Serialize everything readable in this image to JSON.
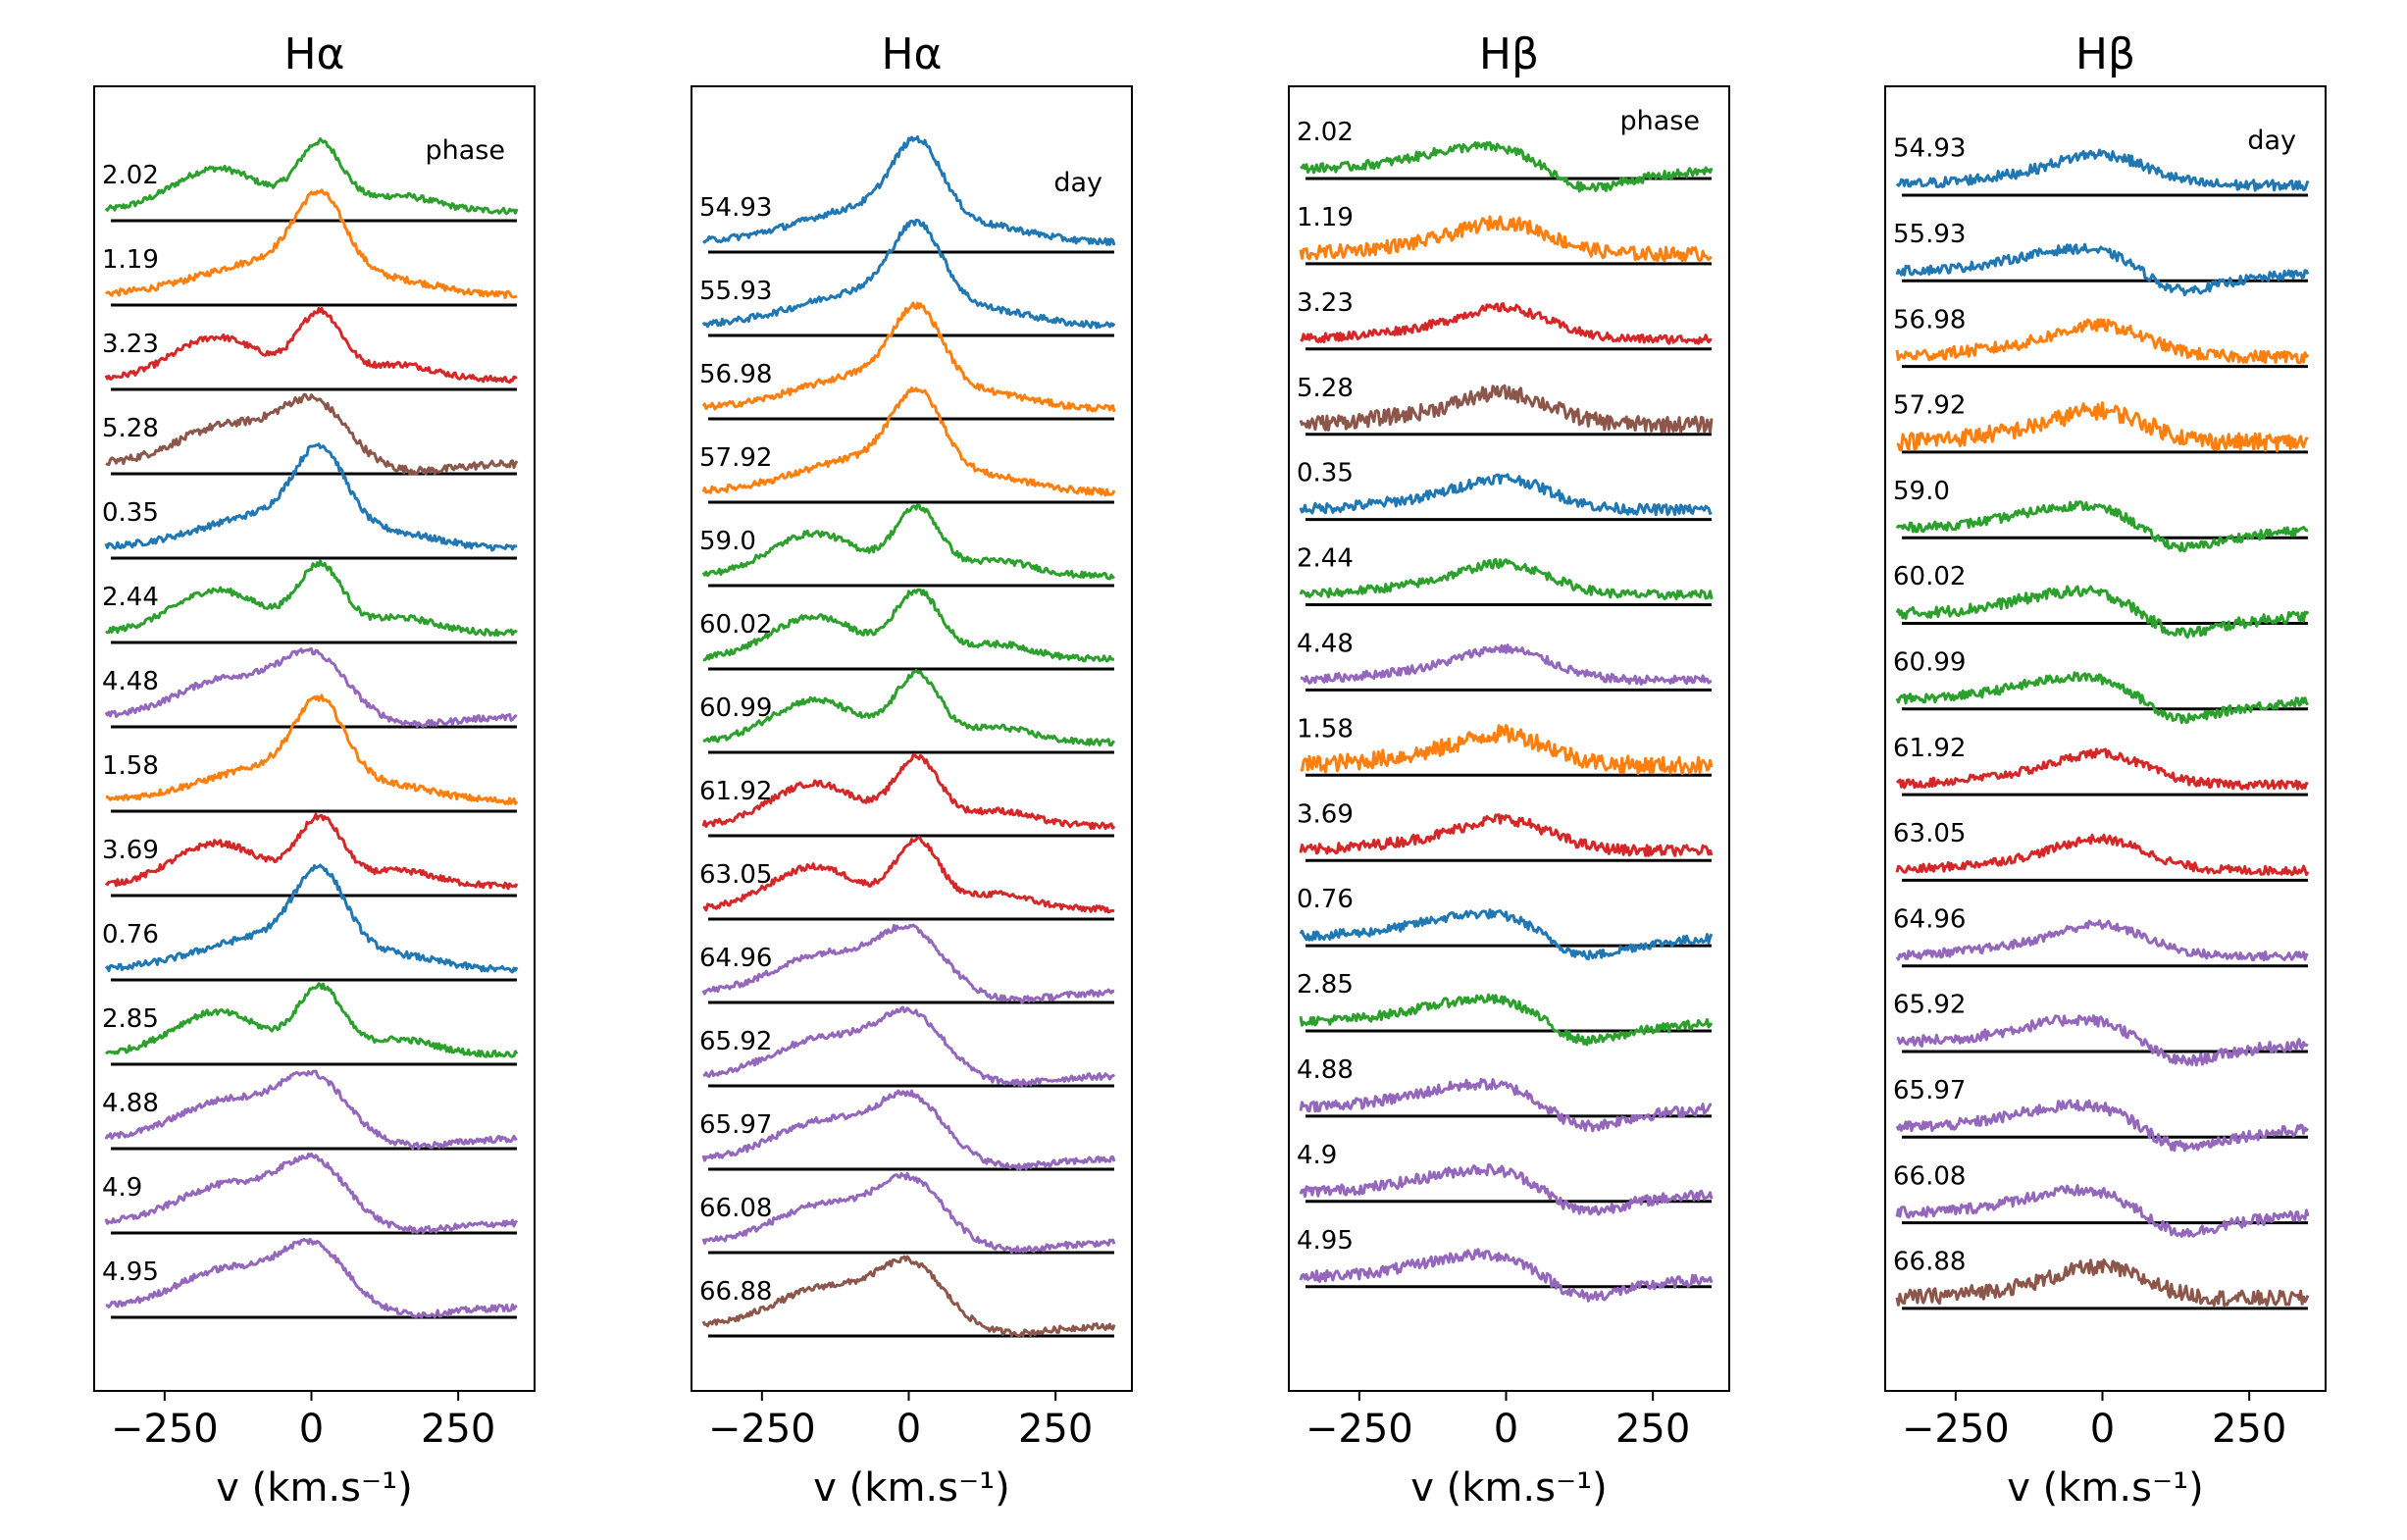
{
  "chart_data": [
    {
      "type": "line",
      "title": "Hα",
      "xlabel": "v (km.s⁻¹)",
      "xlim": [
        -370,
        380
      ],
      "xticks": [
        -250,
        0,
        250
      ],
      "corner_label": "phase",
      "spectra": [
        {
          "label": "2.02",
          "color": "#2ca02c",
          "shape": "double",
          "noise": 0.02
        },
        {
          "label": "1.19",
          "color": "#ff7f0e",
          "shape": "single",
          "noise": 0.02
        },
        {
          "label": "3.23",
          "color": "#d62728",
          "shape": "double",
          "noise": 0.02
        },
        {
          "label": "5.28",
          "color": "#8c564b",
          "shape": "broad",
          "noise": 0.025
        },
        {
          "label": "0.35",
          "color": "#1f77b4",
          "shape": "single",
          "noise": 0.02
        },
        {
          "label": "2.44",
          "color": "#2ca02c",
          "shape": "double",
          "noise": 0.02
        },
        {
          "label": "4.48",
          "color": "#9467bd",
          "shape": "broad",
          "noise": 0.02
        },
        {
          "label": "1.58",
          "color": "#ff7f0e",
          "shape": "single",
          "noise": 0.02
        },
        {
          "label": "3.69",
          "color": "#d62728",
          "shape": "double",
          "noise": 0.02
        },
        {
          "label": "0.76",
          "color": "#1f77b4",
          "shape": "single",
          "noise": 0.02
        },
        {
          "label": "2.85",
          "color": "#2ca02c",
          "shape": "double",
          "noise": 0.02
        },
        {
          "label": "4.88",
          "color": "#9467bd",
          "shape": "broad",
          "noise": 0.02
        },
        {
          "label": "4.9",
          "color": "#9467bd",
          "shape": "broad",
          "noise": 0.02
        },
        {
          "label": "4.95",
          "color": "#9467bd",
          "shape": "broad",
          "noise": 0.02
        }
      ]
    },
    {
      "type": "line",
      "title": "Hα",
      "xlabel": "v (km.s⁻¹)",
      "xlim": [
        -370,
        380
      ],
      "xticks": [
        -250,
        0,
        250
      ],
      "corner_label": "day",
      "spectra": [
        {
          "label": "54.93",
          "color": "#1f77b4",
          "shape": "single",
          "noise": 0.02
        },
        {
          "label": "55.93",
          "color": "#1f77b4",
          "shape": "single",
          "noise": 0.02
        },
        {
          "label": "56.98",
          "color": "#ff7f0e",
          "shape": "single",
          "noise": 0.02
        },
        {
          "label": "57.92",
          "color": "#ff7f0e",
          "shape": "single",
          "noise": 0.02
        },
        {
          "label": "59.0",
          "color": "#2ca02c",
          "shape": "double",
          "noise": 0.02
        },
        {
          "label": "60.02",
          "color": "#2ca02c",
          "shape": "double",
          "noise": 0.02
        },
        {
          "label": "60.99",
          "color": "#2ca02c",
          "shape": "double",
          "noise": 0.02
        },
        {
          "label": "61.92",
          "color": "#d62728",
          "shape": "double",
          "noise": 0.02
        },
        {
          "label": "63.05",
          "color": "#d62728",
          "shape": "double",
          "noise": 0.02
        },
        {
          "label": "64.96",
          "color": "#9467bd",
          "shape": "broad",
          "noise": 0.02
        },
        {
          "label": "65.92",
          "color": "#9467bd",
          "shape": "broad",
          "noise": 0.02
        },
        {
          "label": "65.97",
          "color": "#9467bd",
          "shape": "broad",
          "noise": 0.02
        },
        {
          "label": "66.08",
          "color": "#9467bd",
          "shape": "broad",
          "noise": 0.02
        },
        {
          "label": "66.88",
          "color": "#8c564b",
          "shape": "broad",
          "noise": 0.02
        }
      ]
    },
    {
      "type": "line",
      "title": "Hβ",
      "xlabel": "v (km.s⁻¹)",
      "xlim": [
        -370,
        380
      ],
      "xticks": [
        -250,
        0,
        250
      ],
      "corner_label": "phase",
      "spectra": [
        {
          "label": "2.02",
          "color": "#2ca02c",
          "shape": "pcygni",
          "noise": 0.05
        },
        {
          "label": "1.19",
          "color": "#ff7f0e",
          "shape": "hump",
          "noise": 0.08
        },
        {
          "label": "3.23",
          "color": "#d62728",
          "shape": "hump",
          "noise": 0.05
        },
        {
          "label": "5.28",
          "color": "#8c564b",
          "shape": "hump",
          "noise": 0.09
        },
        {
          "label": "0.35",
          "color": "#1f77b4",
          "shape": "hump",
          "noise": 0.06
        },
        {
          "label": "2.44",
          "color": "#2ca02c",
          "shape": "hump",
          "noise": 0.05
        },
        {
          "label": "4.48",
          "color": "#9467bd",
          "shape": "hump",
          "noise": 0.05
        },
        {
          "label": "1.58",
          "color": "#ff7f0e",
          "shape": "hump",
          "noise": 0.1
        },
        {
          "label": "3.69",
          "color": "#d62728",
          "shape": "hump",
          "noise": 0.06
        },
        {
          "label": "0.76",
          "color": "#1f77b4",
          "shape": "pcygni",
          "noise": 0.05
        },
        {
          "label": "2.85",
          "color": "#2ca02c",
          "shape": "pcygni",
          "noise": 0.05
        },
        {
          "label": "4.88",
          "color": "#9467bd",
          "shape": "pcygni",
          "noise": 0.06
        },
        {
          "label": "4.9",
          "color": "#9467bd",
          "shape": "pcygni",
          "noise": 0.06
        },
        {
          "label": "4.95",
          "color": "#9467bd",
          "shape": "pcygni",
          "noise": 0.06
        }
      ]
    },
    {
      "type": "line",
      "title": "Hβ",
      "xlabel": "v (km.s⁻¹)",
      "xlim": [
        -370,
        380
      ],
      "xticks": [
        -250,
        0,
        250
      ],
      "corner_label": "day",
      "spectra": [
        {
          "label": "54.93",
          "color": "#1f77b4",
          "shape": "hump",
          "noise": 0.06
        },
        {
          "label": "55.93",
          "color": "#1f77b4",
          "shape": "pcygni",
          "noise": 0.05
        },
        {
          "label": "56.98",
          "color": "#ff7f0e",
          "shape": "hump",
          "noise": 0.07
        },
        {
          "label": "57.92",
          "color": "#ff7f0e",
          "shape": "hump",
          "noise": 0.1
        },
        {
          "label": "59.0",
          "color": "#2ca02c",
          "shape": "pcygni",
          "noise": 0.05
        },
        {
          "label": "60.02",
          "color": "#2ca02c",
          "shape": "pcygni",
          "noise": 0.06
        },
        {
          "label": "60.99",
          "color": "#2ca02c",
          "shape": "pcygni",
          "noise": 0.05
        },
        {
          "label": "61.92",
          "color": "#d62728",
          "shape": "hump",
          "noise": 0.05
        },
        {
          "label": "63.05",
          "color": "#d62728",
          "shape": "hump",
          "noise": 0.05
        },
        {
          "label": "64.96",
          "color": "#9467bd",
          "shape": "hump",
          "noise": 0.05
        },
        {
          "label": "65.92",
          "color": "#9467bd",
          "shape": "pcygni",
          "noise": 0.06
        },
        {
          "label": "65.97",
          "color": "#9467bd",
          "shape": "pcygni",
          "noise": 0.06
        },
        {
          "label": "66.08",
          "color": "#9467bd",
          "shape": "pcygni",
          "noise": 0.06
        },
        {
          "label": "66.88",
          "color": "#8c564b",
          "shape": "hump",
          "noise": 0.09
        }
      ]
    }
  ]
}
